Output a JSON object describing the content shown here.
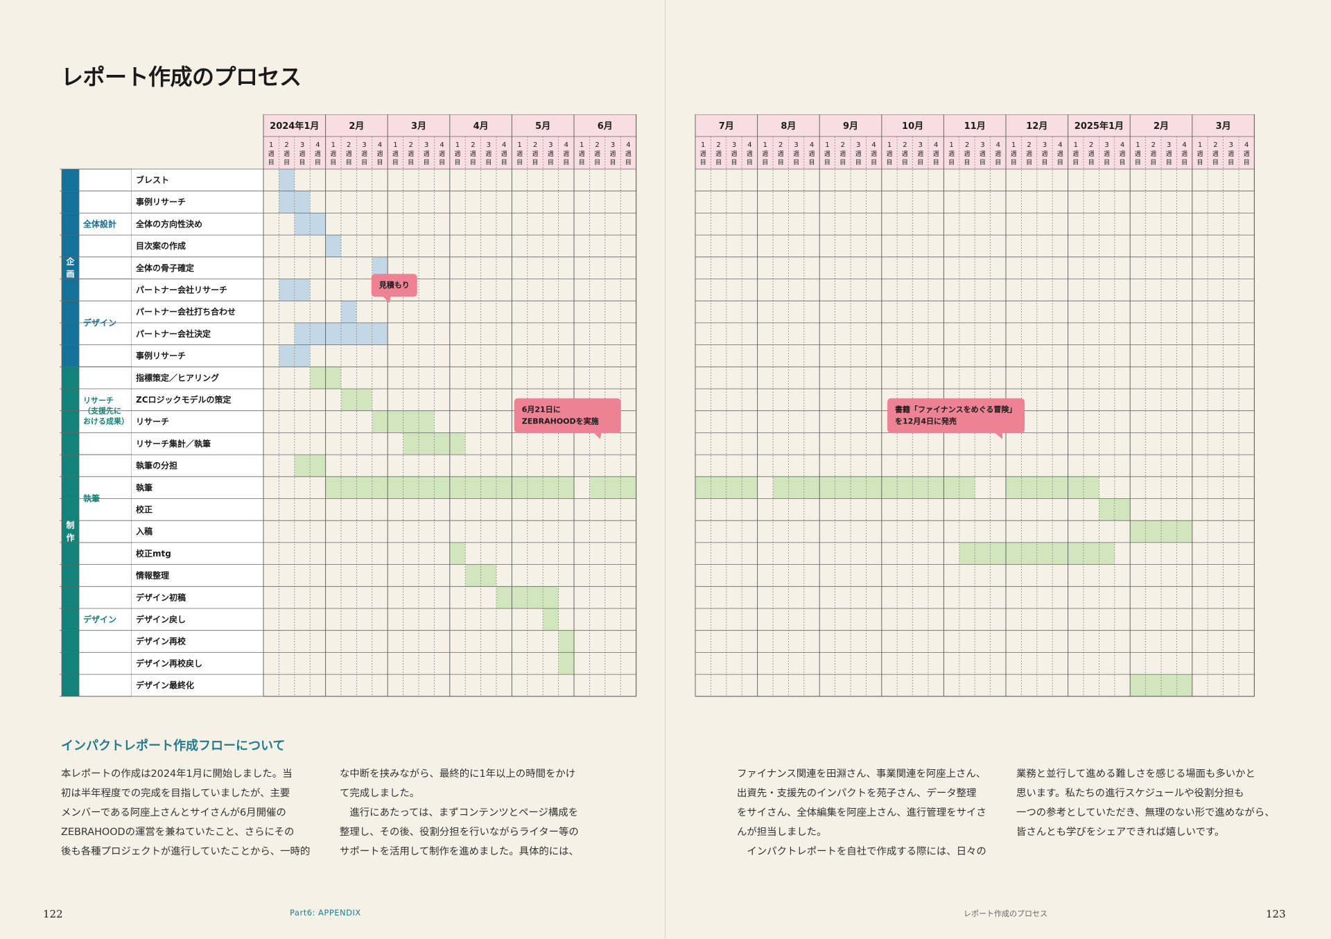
{
  "title": "レポート作成のプロセス",
  "weeks_label_parts": [
    "週",
    "目"
  ],
  "left_months": [
    "2024年1月",
    "2月",
    "3月",
    "4月",
    "5月",
    "6月"
  ],
  "right_months": [
    "7月",
    "8月",
    "9月",
    "10月",
    "11月",
    "12月",
    "2025年1月",
    "2月",
    "3月"
  ],
  "groups": [
    {
      "label": "企画",
      "start": 0,
      "count": 9,
      "color": "#14729a"
    },
    {
      "label": "制作",
      "start": 9,
      "count": 15,
      "color": "#12827a"
    }
  ],
  "subgroups": [
    {
      "lines": [
        "全体設計"
      ],
      "start": 0,
      "count": 5,
      "color": "#14729a"
    },
    {
      "lines": [
        "デザイン"
      ],
      "start": 5,
      "count": 4,
      "color": "#14729a"
    },
    {
      "lines": [
        "リサーチ",
        "（支援先に",
        "おける成果）"
      ],
      "start": 9,
      "count": 4,
      "color": "#12827a"
    },
    {
      "lines": [
        "執筆"
      ],
      "start": 13,
      "count": 4,
      "color": "#12827a"
    },
    {
      "lines": [
        "デザイン"
      ],
      "start": 17,
      "count": 7,
      "color": "#12827a"
    }
  ],
  "tasks": [
    {
      "name": "ブレスト",
      "color": "blue",
      "segments": [
        [
          1,
          1
        ]
      ]
    },
    {
      "name": "事例リサーチ",
      "color": "blue",
      "segments": [
        [
          1,
          2
        ]
      ]
    },
    {
      "name": "全体の方向性決め",
      "color": "blue",
      "segments": [
        [
          2,
          3
        ]
      ]
    },
    {
      "name": "目次案の作成",
      "color": "blue",
      "segments": [
        [
          4,
          4
        ]
      ]
    },
    {
      "name": "全体の骨子確定",
      "color": "blue",
      "segments": [
        [
          7,
          7
        ]
      ]
    },
    {
      "name": "パートナー会社リサーチ",
      "color": "blue",
      "segments": [
        [
          1,
          2
        ]
      ]
    },
    {
      "name": "パートナー会社打ち合わせ",
      "color": "blue",
      "segments": [
        [
          5,
          5
        ]
      ]
    },
    {
      "name": "パートナー会社決定",
      "color": "blue",
      "segments": [
        [
          2,
          7
        ]
      ]
    },
    {
      "name": "事例リサーチ",
      "color": "blue",
      "segments": [
        [
          1,
          2
        ]
      ]
    },
    {
      "name": "指標策定／ヒアリング",
      "color": "green",
      "segments": [
        [
          3,
          4
        ]
      ]
    },
    {
      "name": "ZCロジックモデルの策定",
      "color": "green",
      "segments": [
        [
          5,
          6
        ]
      ]
    },
    {
      "name": "リサーチ",
      "color": "green",
      "segments": [
        [
          7,
          10
        ]
      ]
    },
    {
      "name": "リサーチ集計／執筆",
      "color": "green",
      "segments": [
        [
          9,
          12
        ]
      ]
    },
    {
      "name": "執筆の分担",
      "color": "green",
      "segments": [
        [
          2,
          3
        ]
      ]
    },
    {
      "name": "執筆",
      "color": "green",
      "segments": [
        [
          4,
          19
        ],
        [
          21,
          27
        ],
        [
          29,
          41
        ],
        [
          44,
          49
        ]
      ]
    },
    {
      "name": "校正",
      "color": "green",
      "segments": [
        [
          50,
          51
        ]
      ]
    },
    {
      "name": "入稿",
      "color": "green",
      "segments": [
        [
          52,
          55
        ]
      ]
    },
    {
      "name": "校正mtg",
      "color": "green",
      "segments": [
        [
          12,
          12
        ],
        [
          41,
          50
        ]
      ]
    },
    {
      "name": "情報整理",
      "color": "green",
      "segments": [
        [
          13,
          14
        ]
      ]
    },
    {
      "name": "デザイン初稿",
      "color": "green",
      "segments": [
        [
          15,
          18
        ]
      ]
    },
    {
      "name": "デザイン戻し",
      "color": "green",
      "segments": [
        [
          18,
          18
        ]
      ]
    },
    {
      "name": "デザイン再校",
      "color": "green",
      "segments": [
        [
          19,
          19
        ]
      ]
    },
    {
      "name": "デザイン再校戻し",
      "color": "green",
      "segments": [
        [
          19,
          19
        ]
      ]
    },
    {
      "name": "デザイン最終化",
      "color": "green",
      "segments": [
        [
          52,
          55
        ]
      ]
    }
  ],
  "callouts": [
    {
      "lines": [
        "見積もり"
      ],
      "row": 6,
      "col": 7,
      "side": "left"
    },
    {
      "lines": [
        "6月21日に",
        "ZEBRAHOODを実施"
      ],
      "row": 12,
      "col": 22,
      "side": "left"
    },
    {
      "lines": [
        "書籍「ファイナンスをめぐる冒険」",
        "を12月4日に発売"
      ],
      "row": 12,
      "col": 43,
      "side": "right"
    }
  ],
  "colors": {
    "header_pink": "#f8dde2",
    "bar_blue": "#c3d8e6",
    "bar_green": "#d1e6bd",
    "callout_pink": "#ee8295",
    "teal_text": "#1f7c8f",
    "grid": "#666666"
  },
  "section_heading": "インパクトレポート作成フローについて",
  "body_columns": [
    [
      "本レポートの作成は2024年1月に開始しました。当",
      "初は半年程度での完成を目指していましたが、主要",
      "メンバーである阿座上さんとサイさんが6月開催の",
      "ZEBRAHOODの運営を兼ねていたこと、さらにその",
      "後も各種プロジェクトが進行していたことから、一時的"
    ],
    [
      "な中断を挟みながら、最終的に1年以上の時間をかけ",
      "て完成しました。",
      "　進行にあたっては、まずコンテンツとページ構成を",
      "整理し、その後、役割分担を行いながらライター等の",
      "サポートを活用して制作を進めました。具体的には、"
    ],
    [
      "ファイナンス関連を田淵さん、事業関連を阿座上さん、",
      "出資先・支援先のインパクトを苑子さん、データ整理",
      "をサイさん、全体編集を阿座上さん、進行管理をサイさ",
      "んが担当しました。",
      "　インパクトレポートを自社で作成する際には、日々の"
    ],
    [
      "業務と並行して進める難しさを感じる場面も多いかと",
      "思います。私たちの進行スケジュールや役割分担も",
      "一つの参考としていただき、無理のない形で進めながら、",
      "皆さんとも学びをシェアできれば嬉しいです。"
    ]
  ],
  "page_left": "122",
  "page_right": "123",
  "footer_left": "Part6: APPENDIX",
  "footer_right": "レポート作成のプロセス"
}
